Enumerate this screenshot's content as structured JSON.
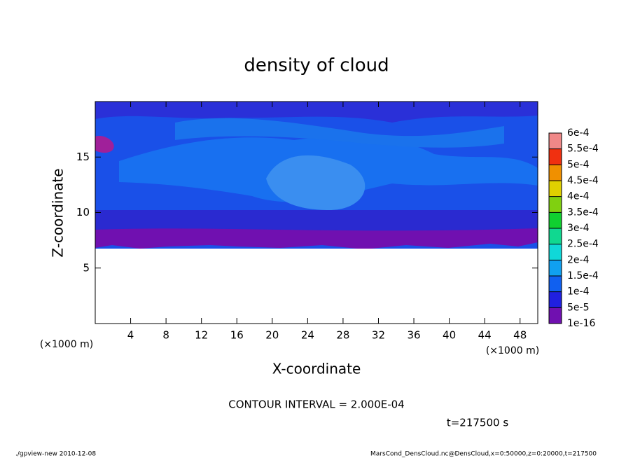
{
  "chart_data": {
    "type": "contour",
    "title": "density of cloud",
    "x_label": "X-coordinate",
    "y_label": "Z-coordinate",
    "x_unit": "(×1000 m)",
    "y_unit": "(×1000 m)",
    "contour_interval": "CONTOUR INTERVAL = 2.000E-04",
    "time": "t=217500 s",
    "footer_left": "./gpview-new  2010-12-08",
    "footer_right": "MarsCond_DensCloud.nc@DensCloud,x=0:50000,z=0:20000,t=217500",
    "xlim": [
      0,
      50
    ],
    "xticks": [
      4,
      8,
      12,
      16,
      20,
      24,
      28,
      32,
      36,
      40,
      44,
      48
    ],
    "ylim": [
      0,
      20
    ],
    "yticks": [
      5,
      10,
      15
    ],
    "levels": [
      {
        "value": 1e-16,
        "label": "1e-16"
      },
      {
        "value": 5e-05,
        "label": "5e-5"
      },
      {
        "value": 0.0001,
        "label": "1e-4"
      },
      {
        "value": 0.00015,
        "label": "1.5e-4"
      },
      {
        "value": 0.0002,
        "label": "2e-4"
      },
      {
        "value": 0.00025,
        "label": "2.5e-4"
      },
      {
        "value": 0.0003,
        "label": "3e-4"
      },
      {
        "value": 0.00035,
        "label": "3.5e-4"
      },
      {
        "value": 0.0004,
        "label": "4e-4"
      },
      {
        "value": 0.00045,
        "label": "4.5e-4"
      },
      {
        "value": 0.0005,
        "label": "5e-4"
      },
      {
        "value": 0.00055,
        "label": "5.5e-4"
      },
      {
        "value": 0.0006,
        "label": "6e-4"
      }
    ],
    "colors": [
      "#7010b0",
      "#2020e0",
      "#1060f0",
      "#10a0f0",
      "#10d8d8",
      "#10d890",
      "#10d030",
      "#80d010",
      "#e0d000",
      "#f09000",
      "#f03010",
      "#f08888"
    ]
  }
}
